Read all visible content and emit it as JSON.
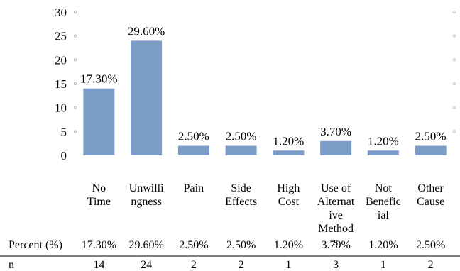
{
  "chart_data": {
    "type": "bar",
    "categories": [
      [
        "No",
        "Time"
      ],
      [
        "Unwilli",
        "ngness"
      ],
      [
        "Pain"
      ],
      [
        "Side",
        "Effects"
      ],
      [
        "High",
        "Cost"
      ],
      [
        "Use of",
        "Alternat",
        "ive",
        "Method",
        "s"
      ],
      [
        "Not",
        "Benefic",
        "ial"
      ],
      [
        "Other",
        "Cause"
      ]
    ],
    "values": [
      14,
      24,
      2,
      2,
      1,
      3,
      1,
      2
    ],
    "data_labels": [
      "17.30%",
      "29.60%",
      "2.50%",
      "2.50%",
      "1.20%",
      "3.70%",
      "1.20%",
      "2.50%"
    ],
    "ylim": [
      0,
      30
    ],
    "yticks": [
      0,
      5,
      10,
      15,
      20,
      25,
      30
    ],
    "grid": false,
    "bar_color": "#7b9cc6",
    "table": {
      "rows": [
        {
          "label": "Percent (%)",
          "values": [
            "17.30%",
            "29.60%",
            "2.50%",
            "2.50%",
            "1.20%",
            "3.70%",
            "1.20%",
            "2.50%"
          ]
        },
        {
          "label": "n",
          "values": [
            "14",
            "24",
            "2",
            "2",
            "1",
            "3",
            "1",
            "2"
          ]
        }
      ]
    }
  }
}
